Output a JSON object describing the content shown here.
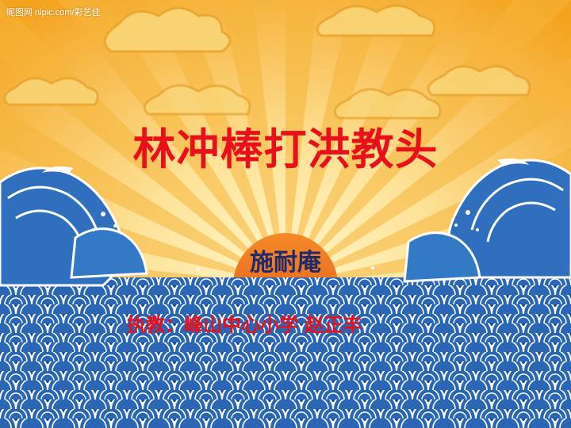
{
  "watermark": "昵图网 nipic.com/彩艺佳",
  "slide": {
    "title": "林冲棒打洪教头",
    "author": "施耐庵",
    "teacher_line": "执教：峰山中心小学 赵正丰"
  },
  "colors": {
    "title": "#e8101a",
    "author": "#1f2a6b",
    "teacher": "#e8101a",
    "sky_light": "#fde79a",
    "sky_dark": "#f5a21c",
    "sun": "#f07a1c",
    "cloud": "#f9d77a",
    "wave_dark": "#1f4f9c",
    "wave_light": "#3a86c8",
    "foam": "#ffffff"
  },
  "icons": {
    "cloud": "cloud-icon",
    "wave": "wave-icon",
    "sun": "sun-icon"
  }
}
